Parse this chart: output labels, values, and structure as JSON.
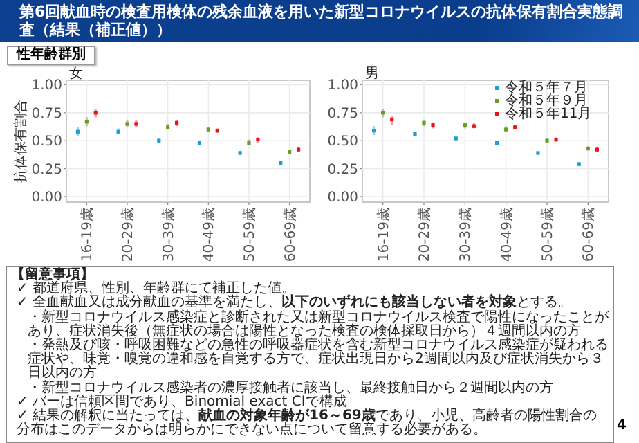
{
  "chart_data": [
    {
      "type": "other",
      "title": "第6回献血時の検査用検体の残余血液を用いた新型コロナウイルスの抗体保有割合実態調査（結果（補正値））",
      "subtitle": "性年齢群別",
      "annotations": [
        "【留意事項】",
        "✓ 都道府県、性別、年齢群にて補正した値。",
        "✓ 全血献血又は成分献血の基準を満たし、**以下のいずれにも該当しない者を対象**とする。",
        "・新型コロナウイルス感染症と診断された又は新型コロナウイルス検査で陽性になったことがあり、症状消失後（無症状の場合は陽性となった検査の検体採取日から）４週間以内の方",
        "・発熱及び咳・呼吸困難などの急性の呼吸器症状を含む新型コロナウイルス感染症が疑われる症状や、味覚・嗅覚の違和感を自覚する方で、症状出現日から2週間以内及び症状消失から３日以内の方",
        "・新型コロナウイルス感染者の濃厚接触者に該当し、最終接触日から２週間以内の方",
        "✓ バーは信頼区間であり、Binomial exact CIで構成",
        "✓ 結果の解釈に当たっては、**献血の対象年齢が16～69歳**であり、小児、高齢者の陽性割合の分布はこのデータからは明らかにできない点について留意する必要がある。",
        "4"
      ]
    },
    {
      "type": "scatter",
      "title": "女",
      "ylabel": "抗体保有割合",
      "categories": [
        "16-19歳",
        "20-29歳",
        "30-39歳",
        "40-49歳",
        "50-59歳",
        "60-69歳"
      ],
      "ylim": [
        -0.05,
        1.04
      ],
      "yticks": [
        {
          "value": 0,
          "label": "0.00"
        },
        {
          "value": 0.25,
          "label": "0.25"
        },
        {
          "value": 0.5,
          "label": "0.50"
        },
        {
          "value": 0.75,
          "label": "0.75"
        },
        {
          "value": 1,
          "label": "1.00"
        }
      ],
      "grid": true,
      "marker": "square",
      "legend": false,
      "series": [
        {
          "color": "#1f9bd7",
          "values": [
            0.58,
            0.58,
            0.5,
            0.48,
            0.39,
            0.3
          ],
          "errors": [
            [
              0.54,
              0.62
            ],
            [
              0.56,
              0.61
            ],
            [
              0.48,
              0.52
            ],
            [
              0.46,
              0.5
            ],
            [
              0.37,
              0.41
            ],
            [
              0.28,
              0.32
            ]
          ]
        },
        {
          "color": "#6a9a28",
          "values": [
            0.67,
            0.65,
            0.62,
            0.6,
            0.48,
            0.4
          ],
          "errors": [
            [
              0.63,
              0.71
            ],
            [
              0.62,
              0.68
            ],
            [
              0.6,
              0.65
            ],
            [
              0.58,
              0.62
            ],
            [
              0.46,
              0.51
            ],
            [
              0.38,
              0.42
            ]
          ]
        },
        {
          "color": "#e8141c",
          "values": [
            0.75,
            0.65,
            0.66,
            0.59,
            0.51,
            0.42
          ],
          "errors": [
            [
              0.71,
              0.78
            ],
            [
              0.62,
              0.68
            ],
            [
              0.63,
              0.68
            ],
            [
              0.57,
              0.61
            ],
            [
              0.48,
              0.53
            ],
            [
              0.4,
              0.44
            ]
          ]
        }
      ]
    },
    {
      "type": "scatter",
      "title": "男",
      "categories": [
        "16-19歳",
        "20-29歳",
        "30-39歳",
        "40-49歳",
        "50-59歳",
        "60-69歳"
      ],
      "ylim": [
        -0.05,
        1.04
      ],
      "yticks": [
        {
          "value": 0,
          "label": "0.00"
        },
        {
          "value": 0.25,
          "label": "0.25"
        },
        {
          "value": 0.5,
          "label": "0.50"
        },
        {
          "value": 0.75,
          "label": "0.75"
        },
        {
          "value": 1,
          "label": "1.00"
        }
      ],
      "grid": true,
      "marker": "square",
      "legend": "top right",
      "series": [
        {
          "name": "令和５年７月",
          "color": "#1f9bd7",
          "values": [
            0.59,
            0.56,
            0.52,
            0.48,
            0.39,
            0.29
          ],
          "errors": [
            [
              0.55,
              0.63
            ],
            [
              0.54,
              0.58
            ],
            [
              0.5,
              0.54
            ],
            [
              0.47,
              0.5
            ],
            [
              0.37,
              0.4
            ],
            [
              0.27,
              0.31
            ]
          ]
        },
        {
          "name": "令和５年９月",
          "color": "#6a9a28",
          "values": [
            0.75,
            0.66,
            0.64,
            0.6,
            0.5,
            0.43
          ],
          "errors": [
            [
              0.71,
              0.78
            ],
            [
              0.63,
              0.68
            ],
            [
              0.61,
              0.66
            ],
            [
              0.58,
              0.63
            ],
            [
              0.48,
              0.52
            ],
            [
              0.41,
              0.45
            ]
          ]
        },
        {
          "name": "令和５年11月",
          "color": "#e8141c",
          "values": [
            0.69,
            0.64,
            0.63,
            0.62,
            0.51,
            0.42
          ],
          "errors": [
            [
              0.64,
              0.72
            ],
            [
              0.61,
              0.66
            ],
            [
              0.61,
              0.66
            ],
            [
              0.6,
              0.64
            ],
            [
              0.49,
              0.53
            ],
            [
              0.4,
              0.44
            ]
          ]
        }
      ]
    }
  ]
}
